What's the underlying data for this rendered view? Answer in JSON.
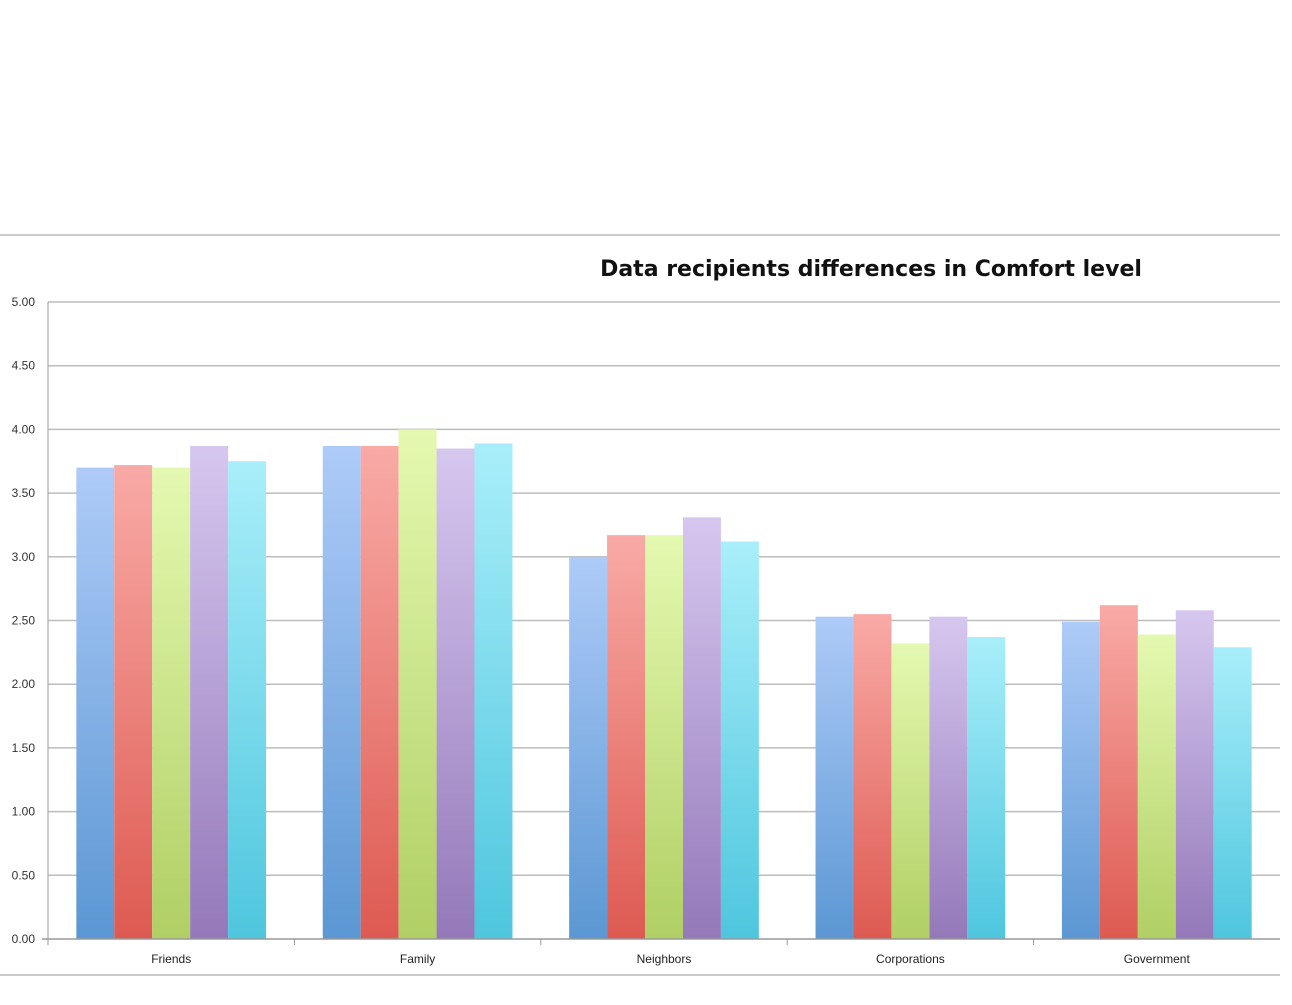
{
  "chart_data": {
    "type": "bar",
    "title": "Data recipients differences in Comfort level",
    "xlabel": "",
    "ylabel": "",
    "categories": [
      "Friends",
      "Family",
      "Neighbors",
      "Corporations",
      "Government"
    ],
    "series": [
      {
        "color_top": "#aecbf8",
        "color_bottom": "#5b97d3",
        "values": [
          3.7,
          3.87,
          3.0,
          2.53,
          2.49
        ]
      },
      {
        "color_top": "#f9aaa6",
        "color_bottom": "#dd5a51",
        "values": [
          3.72,
          3.87,
          3.17,
          2.55,
          2.62
        ]
      },
      {
        "color_top": "#e4f9b0",
        "color_bottom": "#b0cf64",
        "values": [
          3.7,
          4.0,
          3.17,
          2.32,
          2.39
        ]
      },
      {
        "color_top": "#d6c7ef",
        "color_bottom": "#9478b9",
        "values": [
          3.87,
          3.85,
          3.31,
          2.53,
          2.58
        ]
      },
      {
        "color_top": "#a9eefa",
        "color_bottom": "#4ec6de",
        "values": [
          3.75,
          3.89,
          3.12,
          2.37,
          2.29
        ]
      }
    ],
    "ylim": [
      0,
      5
    ],
    "yticks": [
      "0.00",
      "0.50",
      "1.00",
      "1.50",
      "2.00",
      "2.50",
      "3.00",
      "3.50",
      "4.00",
      "4.50",
      "5.00"
    ],
    "grid": true,
    "legend": "none"
  }
}
